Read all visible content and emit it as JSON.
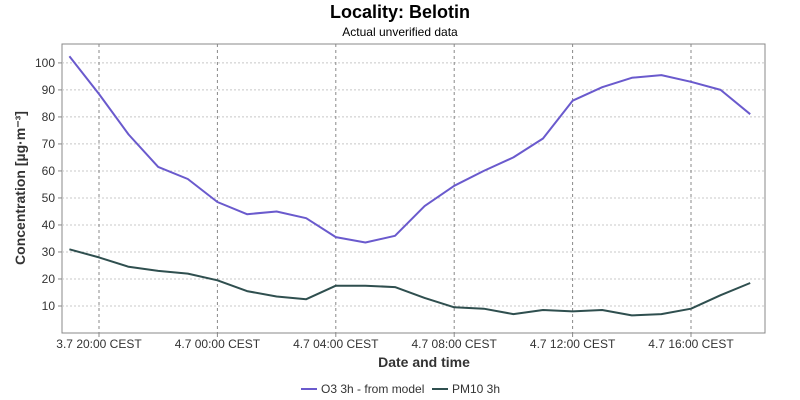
{
  "chart_data": {
    "type": "line",
    "title": "Locality: Belotin",
    "subtitle": "Actual unverified data",
    "xlabel": "Date and time",
    "ylabel": "Concentration [µg·m⁻³]",
    "x_ticks": [
      {
        "label": "3.7 20:00 CEST",
        "hour": 20
      },
      {
        "label": "4.7 00:00 CEST",
        "hour": 24
      },
      {
        "label": "4.7 04:00 CEST",
        "hour": 28
      },
      {
        "label": "4.7 08:00 CEST",
        "hour": 32
      },
      {
        "label": "4.7 12:00 CEST",
        "hour": 36
      },
      {
        "label": "4.7 16:00 CEST",
        "hour": 40
      }
    ],
    "x_hours": [
      19,
      20,
      21,
      22,
      23,
      24,
      25,
      26,
      27,
      28,
      29,
      30,
      31,
      32,
      33,
      34,
      35,
      36,
      37,
      38,
      39,
      40,
      41,
      42
    ],
    "xlim": [
      18.75,
      42.5
    ],
    "ylim": [
      0,
      107
    ],
    "y_ticks": [
      10,
      20,
      30,
      40,
      50,
      60,
      70,
      80,
      90,
      100
    ],
    "grid": true,
    "legend_position": "bottom",
    "series": [
      {
        "name": "O3 3h - from model",
        "color": "#6a5acd",
        "values": [
          102.5,
          88.5,
          73.5,
          61.5,
          57,
          48.5,
          44,
          45,
          42.5,
          35.5,
          33.5,
          36,
          47,
          54.5,
          60,
          65,
          72,
          86,
          91,
          94.5,
          95.5,
          93,
          90,
          81
        ]
      },
      {
        "name": "PM10 3h",
        "color": "#2f4f4f",
        "values": [
          31,
          28,
          24.5,
          23,
          22,
          19.5,
          15.5,
          13.5,
          12.5,
          17.5,
          17.5,
          17,
          13,
          9.5,
          9,
          7,
          8.5,
          8,
          8.5,
          6.5,
          7,
          9,
          14,
          18.5
        ]
      }
    ]
  }
}
